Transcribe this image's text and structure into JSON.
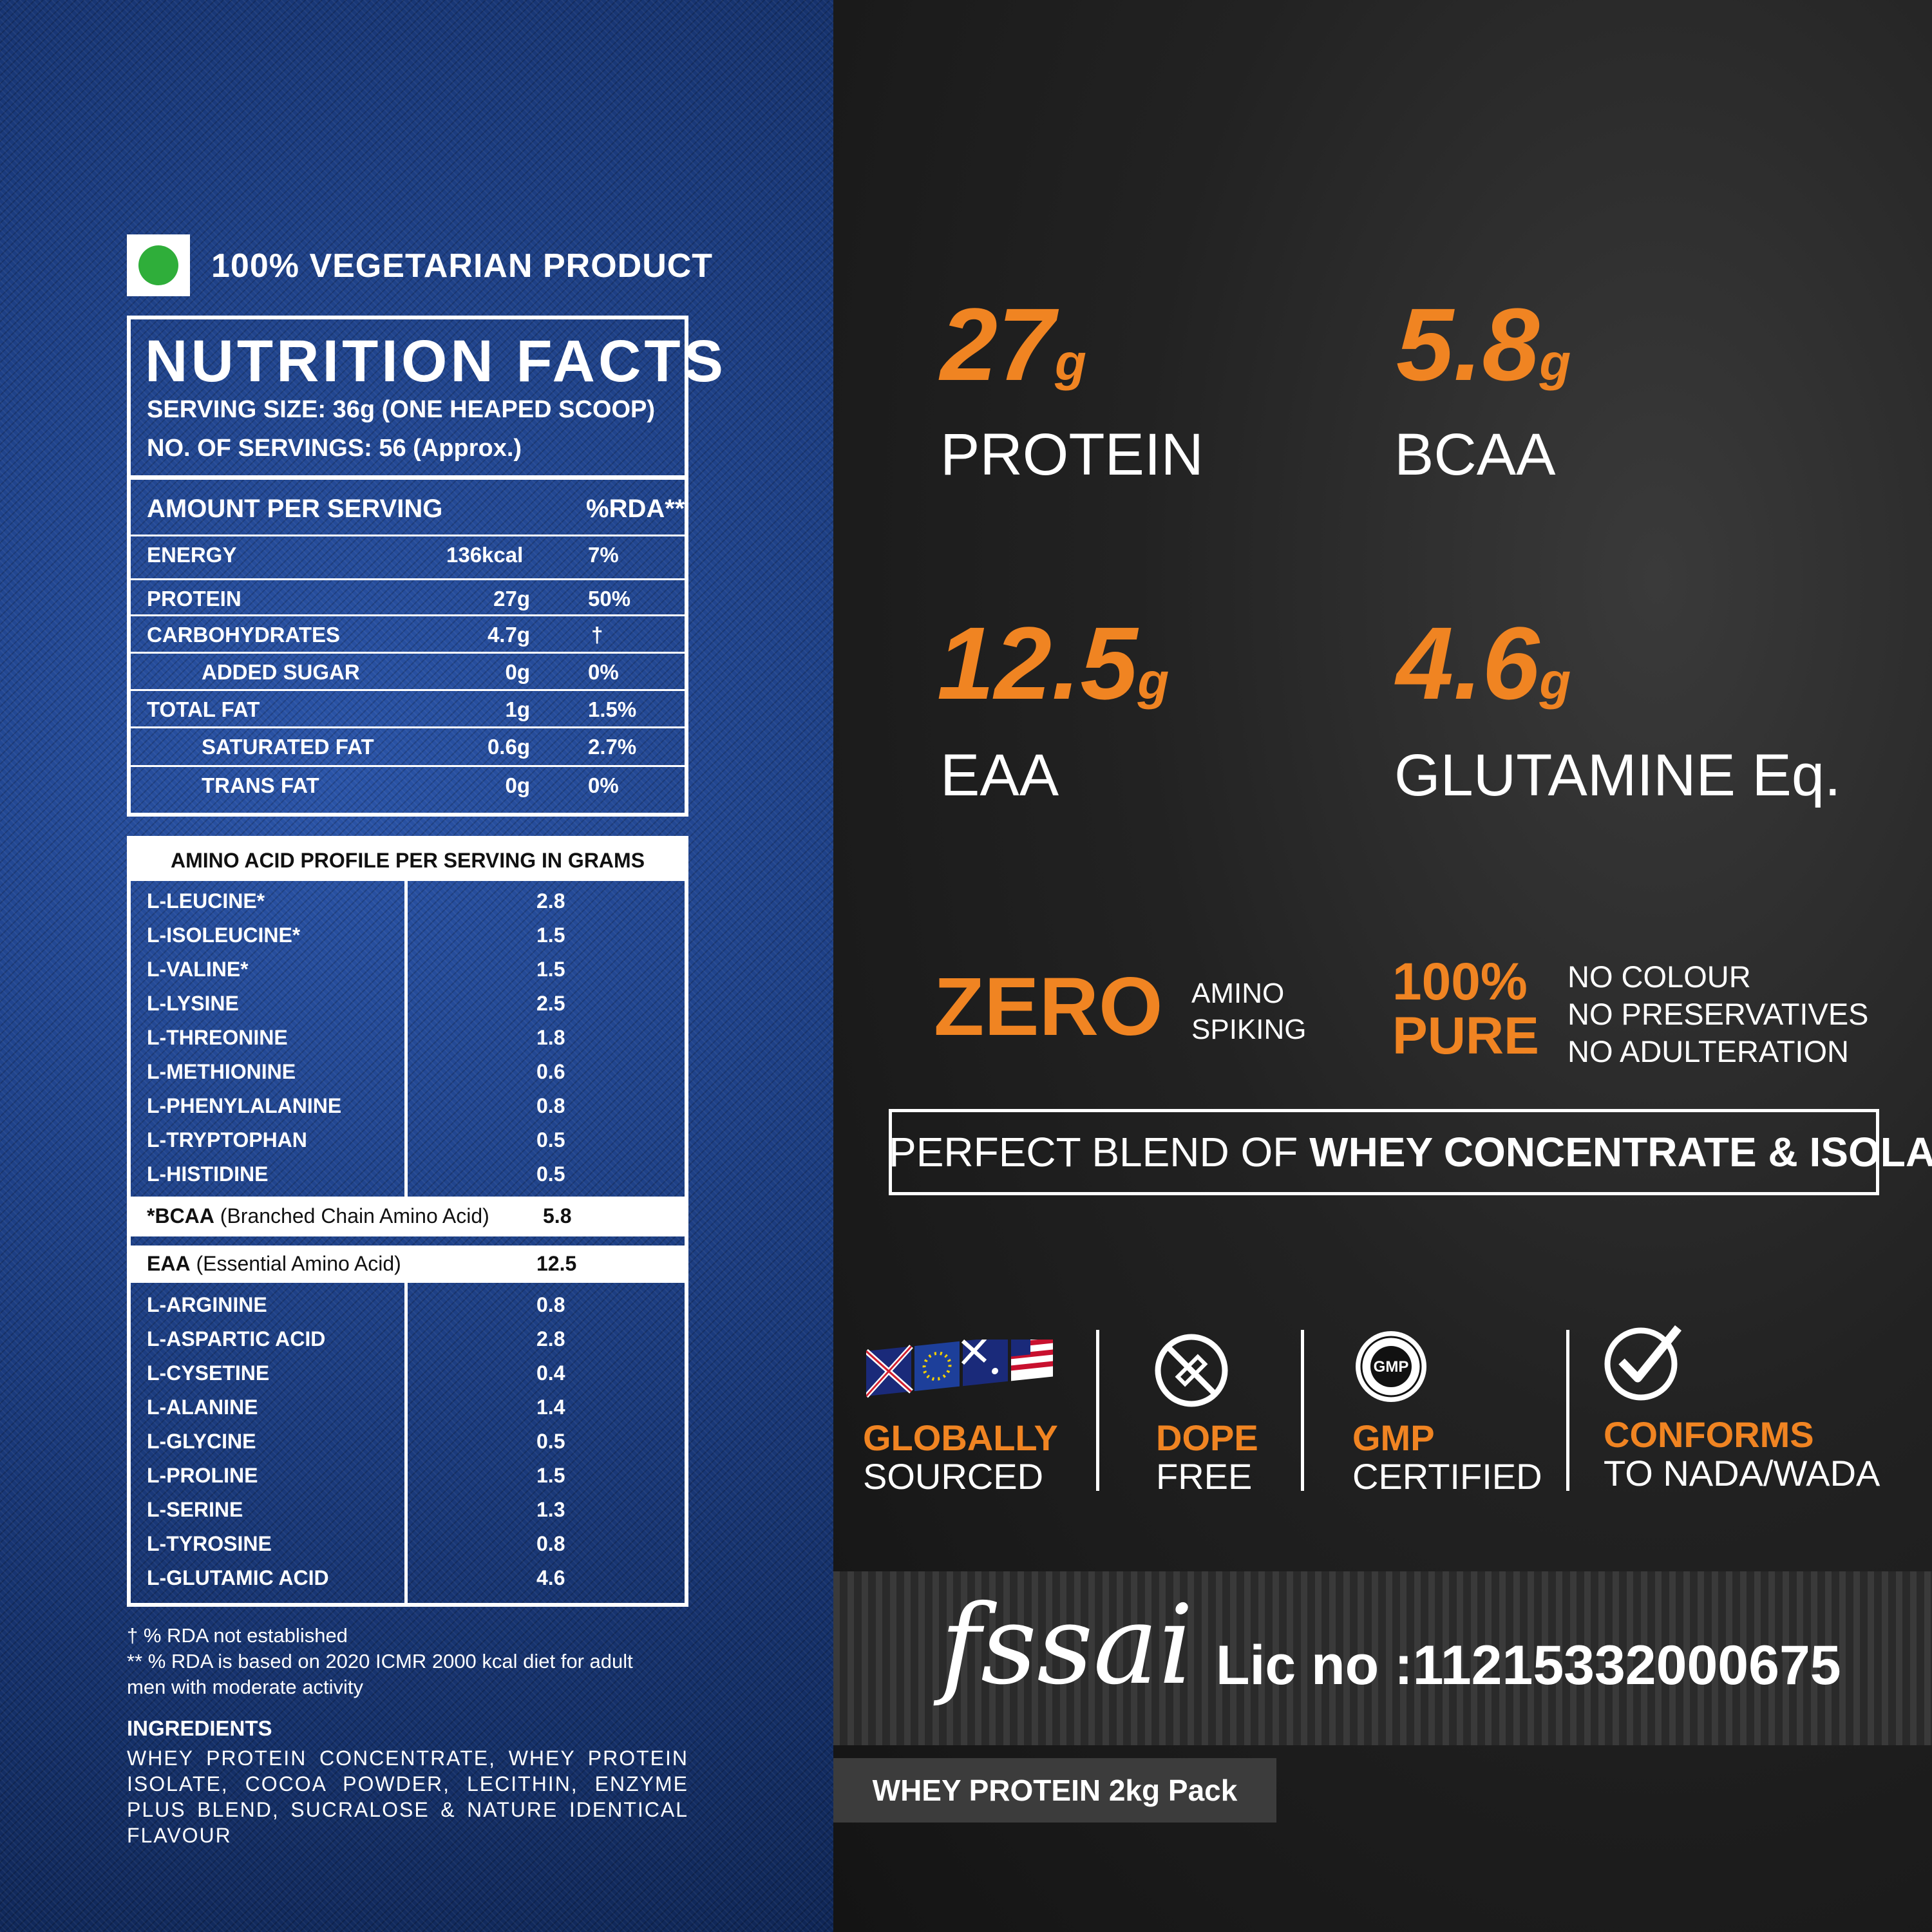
{
  "colors": {
    "accent": "#f08422",
    "veg_green": "#2fae3a",
    "denim": "#1b3a78",
    "dark": "#1c1c1c"
  },
  "left": {
    "veg_label": "100% VEGETARIAN PRODUCT",
    "nutrition": {
      "title": "NUTRITION FACTS",
      "serving_size": "SERVING SIZE: 36g (ONE HEAPED SCOOP)",
      "servings": "NO. OF SERVINGS: 56 (Approx.)",
      "amount_header": "AMOUNT PER SERVING",
      "rda_header": "%RDA**",
      "rows": [
        {
          "label": "ENERGY",
          "amount": "136kcal",
          "rda": "7%"
        },
        {
          "label": "PROTEIN",
          "amount": "27g",
          "rda": "50%"
        },
        {
          "label": "CARBOHYDRATES",
          "amount": "4.7g",
          "rda": "†"
        },
        {
          "label": "ADDED SUGAR",
          "amount": "0g",
          "rda": "0%"
        },
        {
          "label": "TOTAL FAT",
          "amount": "1g",
          "rda": "1.5%"
        },
        {
          "label": "SATURATED FAT",
          "amount": "0.6g",
          "rda": "2.7%"
        },
        {
          "label": "TRANS FAT",
          "amount": "0g",
          "rda": "0%"
        }
      ]
    },
    "amino": {
      "title": "AMINO ACID PROFILE PER SERVING IN GRAMS",
      "group1": [
        {
          "name": "L-LEUCINE*",
          "value": "2.8"
        },
        {
          "name": "L-ISOLEUCINE*",
          "value": "1.5"
        },
        {
          "name": "L-VALINE*",
          "value": "1.5"
        },
        {
          "name": "L-LYSINE",
          "value": "2.5"
        },
        {
          "name": "L-THREONINE",
          "value": "1.8"
        },
        {
          "name": "L-METHIONINE",
          "value": "0.6"
        },
        {
          "name": "L-PHENYLALANINE",
          "value": "0.8"
        },
        {
          "name": "L-TRYPTOPHAN",
          "value": "0.5"
        },
        {
          "name": "L-HISTIDINE",
          "value": "0.5"
        }
      ],
      "bcaa": {
        "abbr": "*BCAA",
        "desc": " (Branched Chain Amino Acid)",
        "value": "5.8"
      },
      "eaa": {
        "abbr": "EAA",
        "desc": " (Essential Amino Acid)",
        "value": "12.5"
      },
      "group2": [
        {
          "name": "L-ARGININE",
          "value": "0.8"
        },
        {
          "name": "L-ASPARTIC ACID",
          "value": "2.8"
        },
        {
          "name": "L-CYSETINE",
          "value": "0.4"
        },
        {
          "name": "L-ALANINE",
          "value": "1.4"
        },
        {
          "name": "L-GLYCINE",
          "value": "0.5"
        },
        {
          "name": "L-PROLINE",
          "value": "1.5"
        },
        {
          "name": "L-SERINE",
          "value": "1.3"
        },
        {
          "name": "L-TYROSINE",
          "value": "0.8"
        },
        {
          "name": "L-GLUTAMIC ACID",
          "value": "4.6"
        }
      ]
    },
    "footnote1": "† % RDA not established",
    "footnote2": "** % RDA is based on 2020 ICMR 2000 kcal diet for adult",
    "footnote3": "men with moderate activity",
    "ingredients_title": "INGREDIENTS",
    "ingredients": "WHEY PROTEIN CONCENTRATE, WHEY PROTEIN ISOLATE, COCOA POWDER, LECITHIN, ENZYME PLUS BLEND, SUCRALOSE & NATURE IDENTICAL FLAVOUR"
  },
  "right": {
    "stats": [
      {
        "value": "27",
        "unit": "g",
        "label": "PROTEIN"
      },
      {
        "value": "5.8",
        "unit": "g",
        "label": "BCAA"
      },
      {
        "value": "12.5",
        "unit": "g",
        "label": "EAA"
      },
      {
        "value": "4.6",
        "unit": "g",
        "label": "GLUTAMINE Eq."
      }
    ],
    "zero": "ZERO",
    "zero_sub1": "AMINO",
    "zero_sub2": "SPIKING",
    "pure1": "100%",
    "pure2": "PURE",
    "pure_items": [
      "NO COLOUR",
      "NO PRESERVATIVES",
      "NO ADULTERATION"
    ],
    "blend_prefix": "PERFECT BLEND OF ",
    "blend_bold": "WHEY CONCENTRATE & ISOLATE",
    "certs": [
      {
        "title": "GLOBALLY",
        "sub": "SOURCED",
        "icon": "flags-icon"
      },
      {
        "title": "DOPE",
        "sub": "FREE",
        "icon": "no-syringe-icon"
      },
      {
        "title": "GMP",
        "sub": "CERTIFIED",
        "icon": "gmp-seal-icon"
      },
      {
        "title": "CONFORMS",
        "sub": "TO NADA/WADA",
        "icon": "check-circle-icon"
      }
    ],
    "gmp_seal_text": "GMP",
    "fssai_logo": "fssai",
    "fssai_lic": "Lic no :11215332000675",
    "pack": "WHEY PROTEIN 2kg Pack"
  }
}
